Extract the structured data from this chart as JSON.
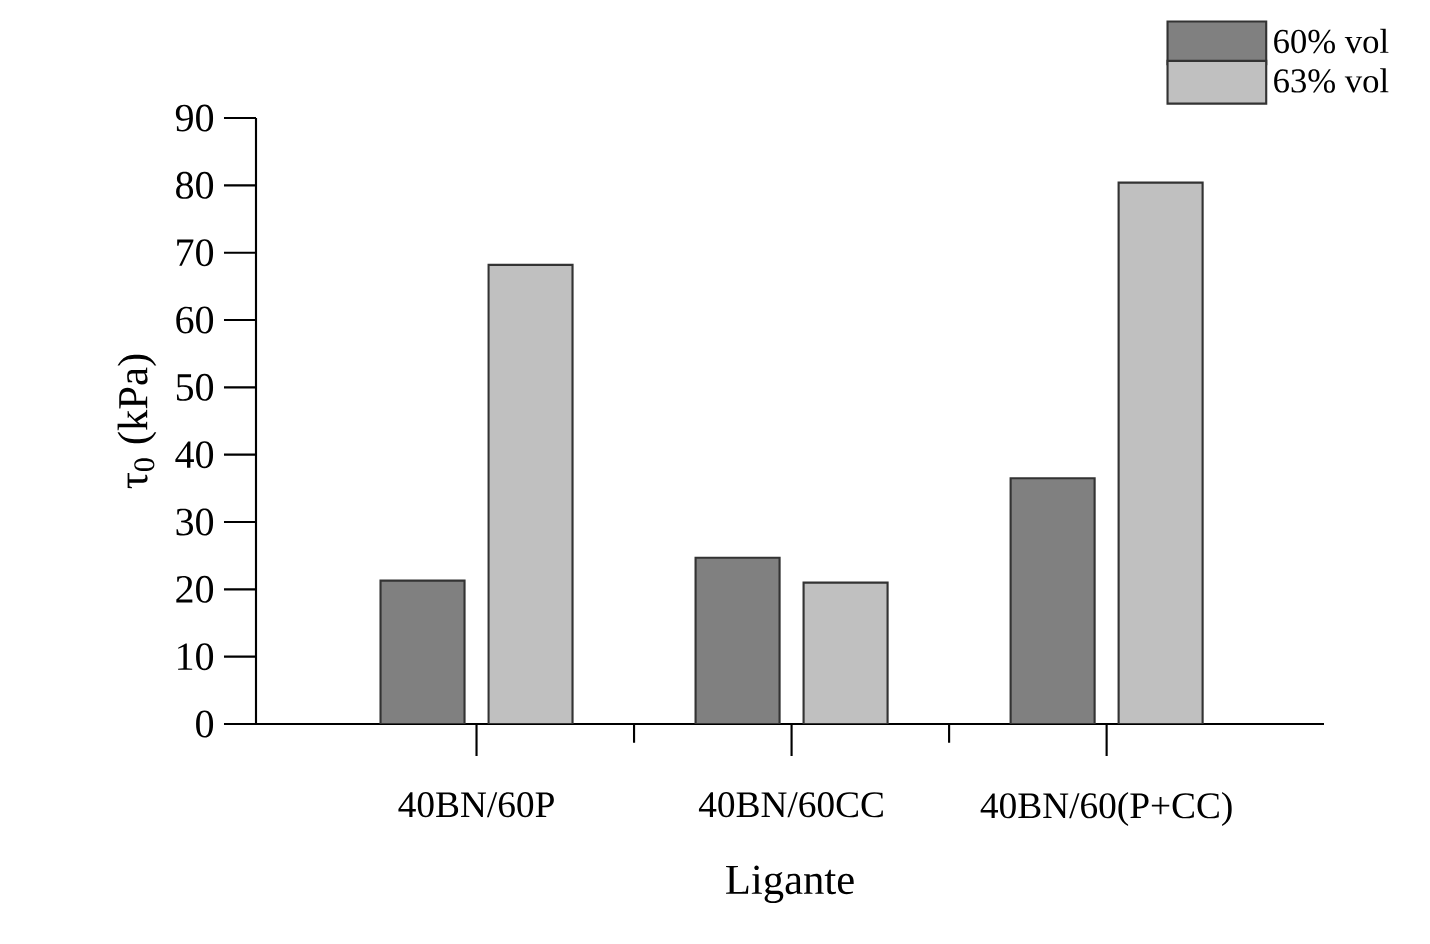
{
  "chart_data": {
    "type": "bar",
    "xlabel": "Ligante",
    "ylabel": "τ$_{0}$ (kPa)",
    "categories": [
      "40BN/60P",
      "40BN/60CC",
      "40BN/60(P+CC)"
    ],
    "series": [
      {
        "name": "60% vol",
        "color": "#808080",
        "values": [
          21.3,
          24.7,
          36.5
        ]
      },
      {
        "name": "63% vol",
        "color": "#c0c0c0",
        "values": [
          68.2,
          21.0,
          80.4
        ]
      }
    ],
    "ylim": [
      0,
      90
    ],
    "yticks": [
      0,
      10,
      20,
      30,
      40,
      50,
      60,
      70,
      80,
      90
    ],
    "grid": false,
    "legend": "top right"
  }
}
